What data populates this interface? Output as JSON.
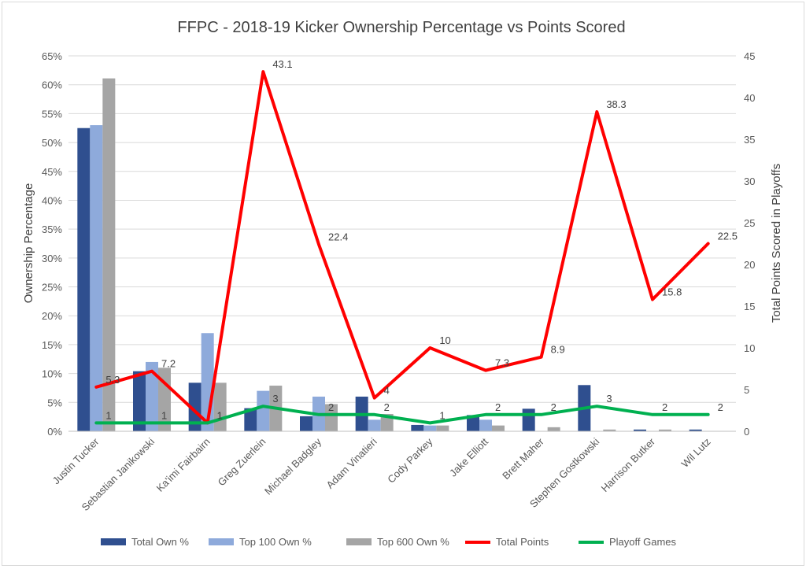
{
  "chart_data": {
    "type": "bar",
    "title": "FFPC - 2018-19 Kicker Ownership Percentage vs Points Scored",
    "ylabel": "Ownership Percentage",
    "y2label": "Total Points Scored in Playoffs",
    "xlabel": "",
    "ylim": [
      0,
      65
    ],
    "y2lim": [
      0,
      45
    ],
    "yticks": [
      "0%",
      "5%",
      "10%",
      "15%",
      "20%",
      "25%",
      "30%",
      "35%",
      "40%",
      "45%",
      "50%",
      "55%",
      "60%",
      "65%"
    ],
    "y2ticks": [
      "0",
      "5",
      "10",
      "15",
      "20",
      "25",
      "30",
      "35",
      "40",
      "45"
    ],
    "grid": true,
    "legend_position": "bottom",
    "categories": [
      "Justin Tucker",
      "Sebastian Janikowski",
      "Ka'imi Fairbairn",
      "Greg Zuerlein",
      "Michael Badgley",
      "Adam Vinatieri",
      "Cody Parkey",
      "Jake Elliott",
      "Brett Maher",
      "Stephen Gostkowski",
      "Harrison Butker",
      "Wil Lutz"
    ],
    "series": [
      {
        "name": "Total Own %",
        "type": "bar",
        "axis": "left",
        "color": "#2f4f8f",
        "values": [
          52.5,
          10.4,
          8.4,
          4.0,
          2.6,
          6.0,
          1.1,
          2.8,
          3.9,
          8.0,
          0.3,
          0.3
        ]
      },
      {
        "name": "Top 100 Own %",
        "type": "bar",
        "axis": "left",
        "color": "#8eaadb",
        "values": [
          53.0,
          12.0,
          17.0,
          7.0,
          6.0,
          2.0,
          1.0,
          2.0,
          0.0,
          0.0,
          0.0,
          0.0
        ]
      },
      {
        "name": "Top 600 Own %",
        "type": "bar",
        "axis": "left",
        "color": "#a5a5a5",
        "values": [
          61.1,
          11.0,
          8.4,
          7.9,
          4.7,
          3.0,
          1.0,
          1.0,
          0.7,
          0.3,
          0.3,
          0.0
        ]
      },
      {
        "name": "Total Points",
        "type": "line",
        "axis": "right",
        "color": "#ff0000",
        "values": [
          5.3,
          7.2,
          1,
          43.1,
          22.4,
          4,
          10,
          7.3,
          8.9,
          38.3,
          15.8,
          22.5
        ],
        "labels": [
          "5.3",
          "7.2",
          "1",
          "43.1",
          "22.4",
          "4",
          "10",
          "7.3",
          "8.9",
          "38.3",
          "15.8",
          "22.5"
        ]
      },
      {
        "name": "Playoff Games",
        "type": "line",
        "axis": "right",
        "color": "#00b050",
        "values": [
          1,
          1,
          1,
          3,
          2,
          2,
          1,
          2,
          2,
          3,
          2,
          2
        ],
        "labels": [
          "1",
          "1",
          "1",
          "3",
          "2",
          "2",
          "1",
          "2",
          "2",
          "3",
          "2",
          "2"
        ]
      }
    ]
  }
}
